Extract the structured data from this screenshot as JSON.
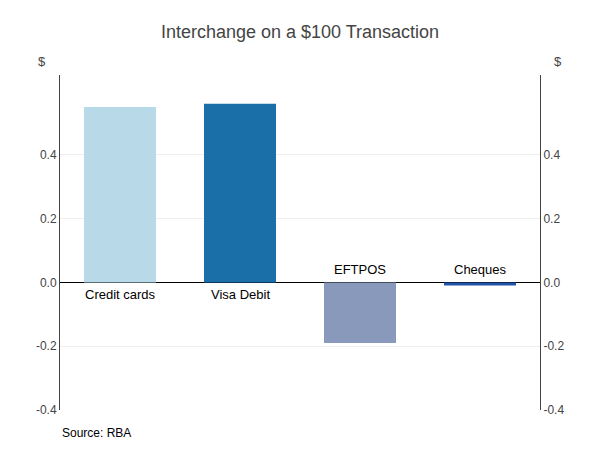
{
  "chart_data": {
    "type": "bar",
    "title": "Interchange on a $100 Transaction",
    "categories": [
      "Credit cards",
      "Visa Debit",
      "EFTPOS",
      "Cheques"
    ],
    "values": [
      0.55,
      0.56,
      -0.19,
      -0.01
    ],
    "colors": [
      "#b8d9e8",
      "#1a6fa8",
      "#8899bb",
      "#2255aa"
    ],
    "ylim": [
      -0.4,
      0.65
    ],
    "yticks": [
      -0.4,
      -0.2,
      {
        "value": 0,
        "label": "0.0"
      },
      0.2,
      0.4
    ],
    "y2lim": [
      -0.4,
      0.65
    ],
    "y2ticks": [
      -0.4,
      -0.2,
      {
        "value": 0,
        "label": "0.0"
      },
      0.2,
      0.4
    ],
    "ylabel": "$",
    "y2label": "$",
    "grid": true,
    "annotations": [
      "Source: RBA"
    ]
  }
}
